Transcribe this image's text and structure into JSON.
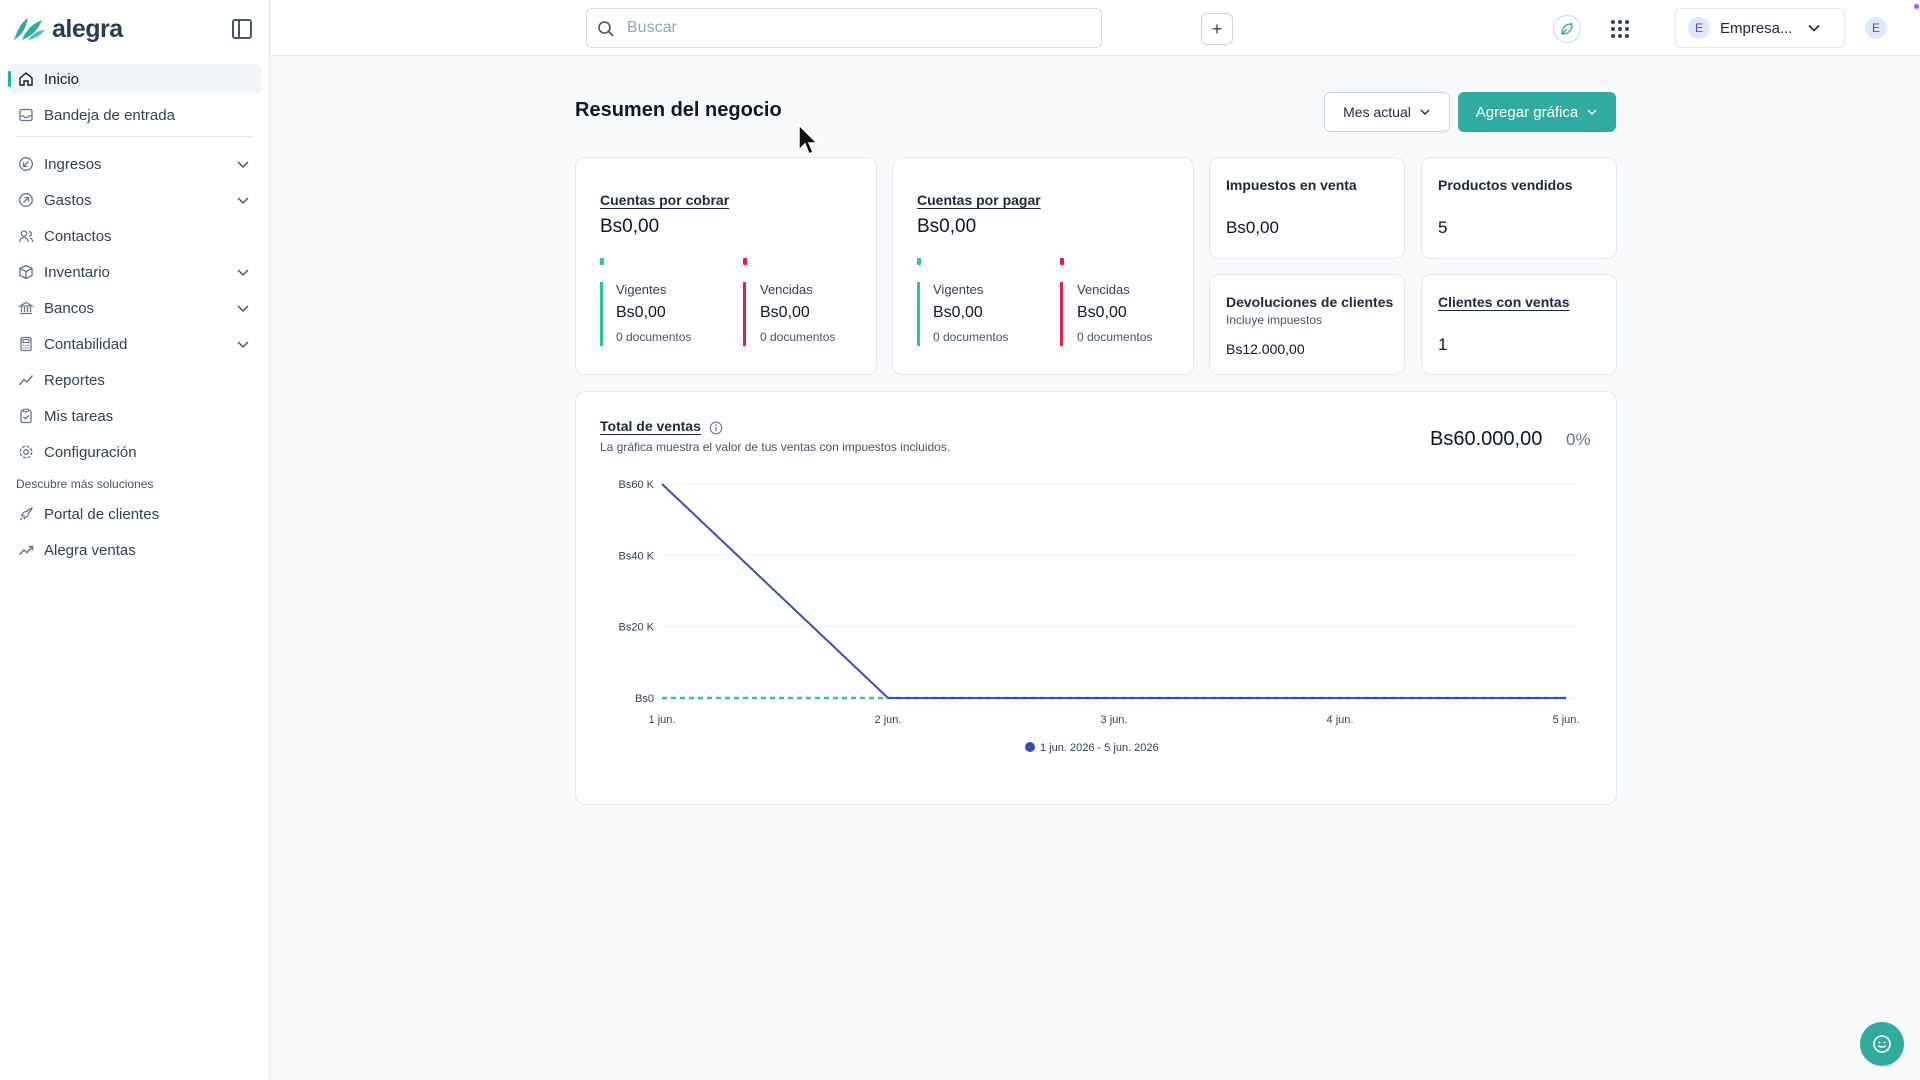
{
  "app": {
    "logo_text": "alegra",
    "brand_color": "#30aba0"
  },
  "sidebar": {
    "items": [
      {
        "label": "Inicio",
        "icon": "home-icon",
        "active": true
      },
      {
        "label": "Bandeja de entrada",
        "icon": "inbox-icon"
      },
      {
        "label": "Ingresos",
        "icon": "income-icon",
        "expandable": true
      },
      {
        "label": "Gastos",
        "icon": "expense-icon",
        "expandable": true
      },
      {
        "label": "Contactos",
        "icon": "contacts-icon"
      },
      {
        "label": "Inventario",
        "icon": "box-icon",
        "expandable": true
      },
      {
        "label": "Bancos",
        "icon": "bank-icon",
        "expandable": true
      },
      {
        "label": "Contabilidad",
        "icon": "calculator-icon",
        "expandable": true
      },
      {
        "label": "Reportes",
        "icon": "chart-line-icon"
      },
      {
        "label": "Mis tareas",
        "icon": "clipboard-icon"
      },
      {
        "label": "Configuración",
        "icon": "gear-icon"
      }
    ],
    "section_title": "Descubre más soluciones",
    "extra_items": [
      {
        "label": "Portal de clientes",
        "icon": "rocket-icon"
      },
      {
        "label": "Alegra ventas",
        "icon": "trend-icon"
      }
    ]
  },
  "topbar": {
    "search_placeholder": "Buscar",
    "plus_label": "+",
    "company_initial": "E",
    "company_name": "Empresa...",
    "user_initial": "E"
  },
  "main": {
    "title": "Resumen del negocio",
    "period_button": "Mes actual",
    "add_chart_button": "Agregar gráfica",
    "receivables": {
      "title": "Cuentas por cobrar",
      "amount": "Bs0,00",
      "current_label": "Vigentes",
      "current_amount": "Bs0,00",
      "current_docs": "0 documentos",
      "overdue_label": "Vencidas",
      "overdue_amount": "Bs0,00",
      "overdue_docs": "0 documentos"
    },
    "payables": {
      "title": "Cuentas por pagar",
      "amount": "Bs0,00",
      "current_label": "Vigentes",
      "current_amount": "Bs0,00",
      "current_docs": "0 documentos",
      "overdue_label": "Vencidas",
      "overdue_amount": "Bs0,00",
      "overdue_docs": "0 documentos"
    },
    "sales_tax": {
      "title": "Impuestos en venta",
      "value": "Bs0,00"
    },
    "products_sold": {
      "title": "Productos vendidos",
      "value": "5"
    },
    "returns": {
      "title": "Devoluciones de clientes",
      "subtitle": "Incluye impuestos",
      "value": "Bs12.000,00"
    },
    "clients_with_sales": {
      "title": "Clientes con ventas",
      "value": "1"
    },
    "total_sales": {
      "title": "Total de ventas",
      "subtitle": "La gráfica muestra el valor de tus ventas con impuestos incluidos.",
      "total": "Bs60.000,00",
      "change": "0%"
    }
  },
  "chart_data": {
    "type": "line",
    "title": "Total de ventas",
    "categories": [
      "1 jun.",
      "2 jun.",
      "3 jun.",
      "4 jun.",
      "5 jun."
    ],
    "y_tick_labels": [
      "Bs0",
      "Bs20 K",
      "Bs40 K",
      "Bs60 K"
    ],
    "y_ticks": [
      0,
      20000,
      40000,
      60000
    ],
    "ylim": [
      0,
      60000
    ],
    "grid": true,
    "legend_position": "bottom",
    "series": [
      {
        "name": "1 jun. 2026 - 5 jun. 2026",
        "values": [
          60000,
          0,
          0,
          0,
          0
        ],
        "color": "#3b4cc0",
        "style": "solid"
      },
      {
        "values": [
          0,
          0,
          0,
          0,
          0
        ],
        "color": "#2fc592",
        "style": "dashed"
      }
    ]
  }
}
